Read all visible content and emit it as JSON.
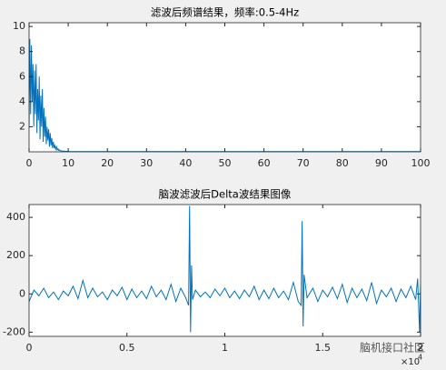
{
  "chart_data": [
    {
      "type": "line",
      "title": "滤波后频谱结果，频率:0.5-4Hz",
      "x": [
        0,
        0.2,
        0.4,
        0.6,
        0.8,
        1,
        1.2,
        1.4,
        1.6,
        1.8,
        2,
        2.2,
        2.4,
        2.6,
        2.8,
        3,
        3.2,
        3.4,
        3.6,
        3.8,
        4,
        4.2,
        4.4,
        4.6,
        4.8,
        5,
        5.2,
        5.4,
        5.6,
        5.8,
        6,
        6.2,
        6.4,
        6.6,
        6.8,
        7,
        7.2,
        7.4,
        7.6,
        7.8,
        8,
        8.5,
        9,
        9.5,
        10,
        20,
        30,
        40,
        50,
        60,
        70,
        80,
        90,
        100
      ],
      "series": [
        {
          "color": "#0072bd",
          "values": [
            2,
            9,
            3,
            8.5,
            4,
            7,
            2,
            6.5,
            3,
            7,
            1.5,
            5,
            2.5,
            6,
            1,
            4.5,
            2,
            5,
            0.8,
            3.5,
            1.2,
            2.8,
            0.6,
            2,
            0.9,
            1.8,
            0.4,
            1.5,
            0.5,
            1.1,
            0.3,
            0.8,
            0.3,
            0.5,
            0.2,
            0.4,
            0.15,
            0.25,
            0.1,
            0.15,
            0.08,
            0.06,
            0.05,
            0.04,
            0.03,
            0.02,
            0.02,
            0.02,
            0.02,
            0.02,
            0.02,
            0.02,
            0.02,
            0.02
          ]
        }
      ],
      "xlim": [
        0,
        100
      ],
      "xticks": [
        0,
        10,
        20,
        30,
        40,
        50,
        60,
        70,
        80,
        90,
        100
      ],
      "ylim": [
        0,
        10.3
      ],
      "yticks": [
        2,
        4,
        6,
        8,
        10
      ]
    },
    {
      "type": "line",
      "title": "脑波滤波后Delta波结果图像",
      "x": [
        0,
        250,
        500,
        750,
        1000,
        1250,
        1500,
        1750,
        2000,
        2250,
        2500,
        2750,
        3000,
        3250,
        3500,
        3750,
        4000,
        4250,
        4500,
        4750,
        5000,
        5250,
        5500,
        5750,
        6000,
        6250,
        6500,
        6750,
        7000,
        7250,
        7500,
        7750,
        8000,
        8150,
        8200,
        8250,
        8300,
        8350,
        8500,
        8750,
        9000,
        9250,
        9500,
        9750,
        10000,
        10250,
        10500,
        10750,
        11000,
        11250,
        11500,
        11750,
        12000,
        12250,
        12500,
        12750,
        13000,
        13250,
        13500,
        13750,
        13900,
        13950,
        14000,
        14050,
        14200,
        14500,
        14750,
        15000,
        15250,
        15500,
        15750,
        16000,
        16250,
        16500,
        16750,
        17000,
        17250,
        17500,
        17750,
        18000,
        18250,
        18500,
        18750,
        19000,
        19250,
        19500,
        19750,
        19850,
        19950,
        20000
      ],
      "series": [
        {
          "color": "#0072bd",
          "values": [
            -40,
            20,
            -10,
            30,
            -20,
            10,
            -30,
            15,
            -10,
            40,
            -25,
            70,
            -20,
            30,
            -15,
            10,
            -30,
            20,
            -10,
            35,
            -30,
            25,
            -20,
            15,
            -25,
            40,
            -15,
            20,
            -30,
            50,
            -40,
            30,
            -20,
            -60,
            460,
            -200,
            150,
            -30,
            20,
            -15,
            10,
            -20,
            25,
            -10,
            30,
            -20,
            15,
            -25,
            20,
            -15,
            40,
            -30,
            20,
            -25,
            30,
            -20,
            15,
            -30,
            60,
            -40,
            -60,
            380,
            -170,
            100,
            -20,
            30,
            -40,
            20,
            -15,
            35,
            -25,
            50,
            -45,
            30,
            -20,
            25,
            -35,
            60,
            -50,
            20,
            -15,
            30,
            -40,
            25,
            -20,
            40,
            -30,
            80,
            -200,
            50
          ]
        }
      ],
      "xlim": [
        0,
        20000
      ],
      "xticks": [
        {
          "value": 0,
          "label": "0"
        },
        {
          "value": 5000,
          "label": "0.5"
        },
        {
          "value": 10000,
          "label": "1"
        },
        {
          "value": 15000,
          "label": "1.5"
        },
        {
          "value": 20000,
          "label": "2"
        }
      ],
      "x_multiplier": "×10",
      "x_multiplier_power": "4",
      "ylim": [
        -222,
        467
      ],
      "yticks": [
        -200,
        0,
        200,
        400
      ]
    }
  ],
  "watermark": "脑机接口社区"
}
